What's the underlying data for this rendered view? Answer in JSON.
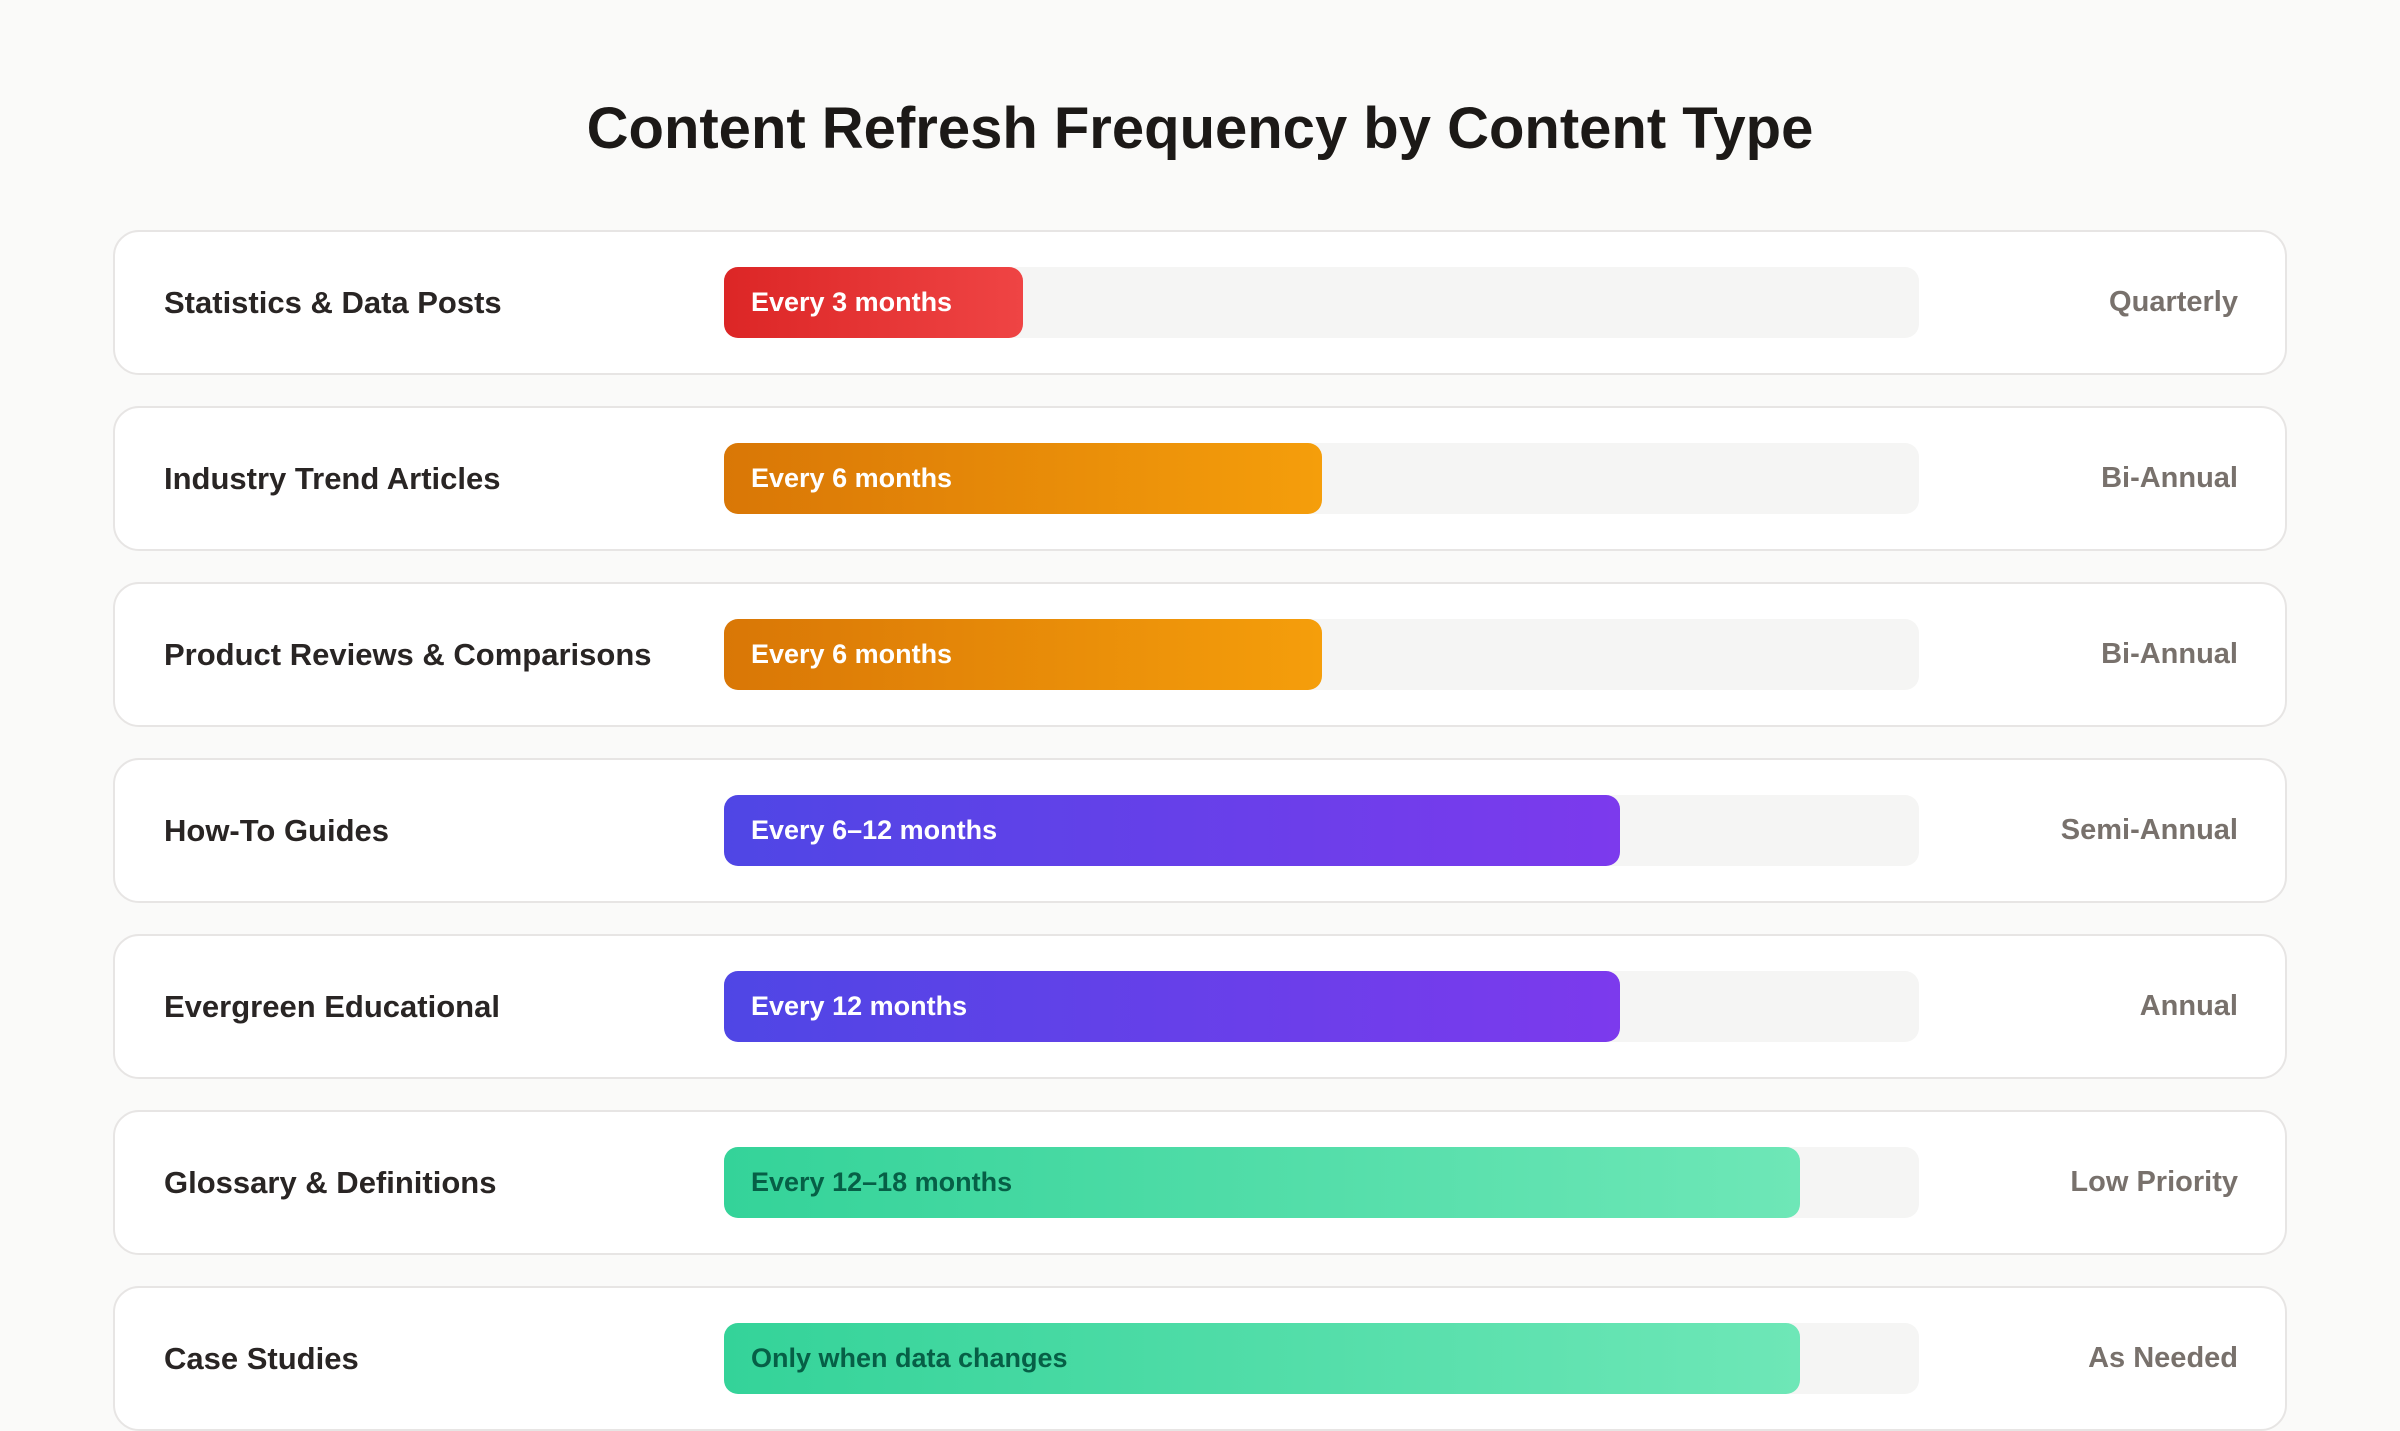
{
  "title": "Content Refresh Frequency by Content Type",
  "rows": [
    {
      "label": "Statistics & Data Posts",
      "bar_text": "Every 3 months",
      "fill": 25,
      "colors": [
        "#dc2626",
        "#ef4444"
      ],
      "text_color": "#ffffff",
      "tag": "Quarterly"
    },
    {
      "label": "Industry Trend Articles",
      "bar_text": "Every 6 months",
      "fill": 50,
      "colors": [
        "#d97706",
        "#f59e0b"
      ],
      "text_color": "#ffffff",
      "tag": "Bi-Annual"
    },
    {
      "label": "Product Reviews & Comparisons",
      "bar_text": "Every 6 months",
      "fill": 50,
      "colors": [
        "#d97706",
        "#f59e0b"
      ],
      "text_color": "#ffffff",
      "tag": "Bi-Annual"
    },
    {
      "label": "How-To Guides",
      "bar_text": "Every 6–12 months",
      "fill": 75,
      "colors": [
        "#4f46e5",
        "#7c3aed"
      ],
      "text_color": "#ffffff",
      "tag": "Semi-Annual"
    },
    {
      "label": "Evergreen Educational",
      "bar_text": "Every 12 months",
      "fill": 75,
      "colors": [
        "#4f46e5",
        "#7c3aed"
      ],
      "text_color": "#ffffff",
      "tag": "Annual"
    },
    {
      "label": "Glossary & Definitions",
      "bar_text": "Every 12–18 months",
      "fill": 90,
      "colors": [
        "#34d399",
        "#6ee7b7"
      ],
      "text_color": "#065f46",
      "tag": "Low Priority"
    },
    {
      "label": "Case Studies",
      "bar_text": "Only when data changes",
      "fill": 90,
      "colors": [
        "#34d399",
        "#6ee7b7"
      ],
      "text_color": "#065f46",
      "tag": "As Needed"
    }
  ]
}
